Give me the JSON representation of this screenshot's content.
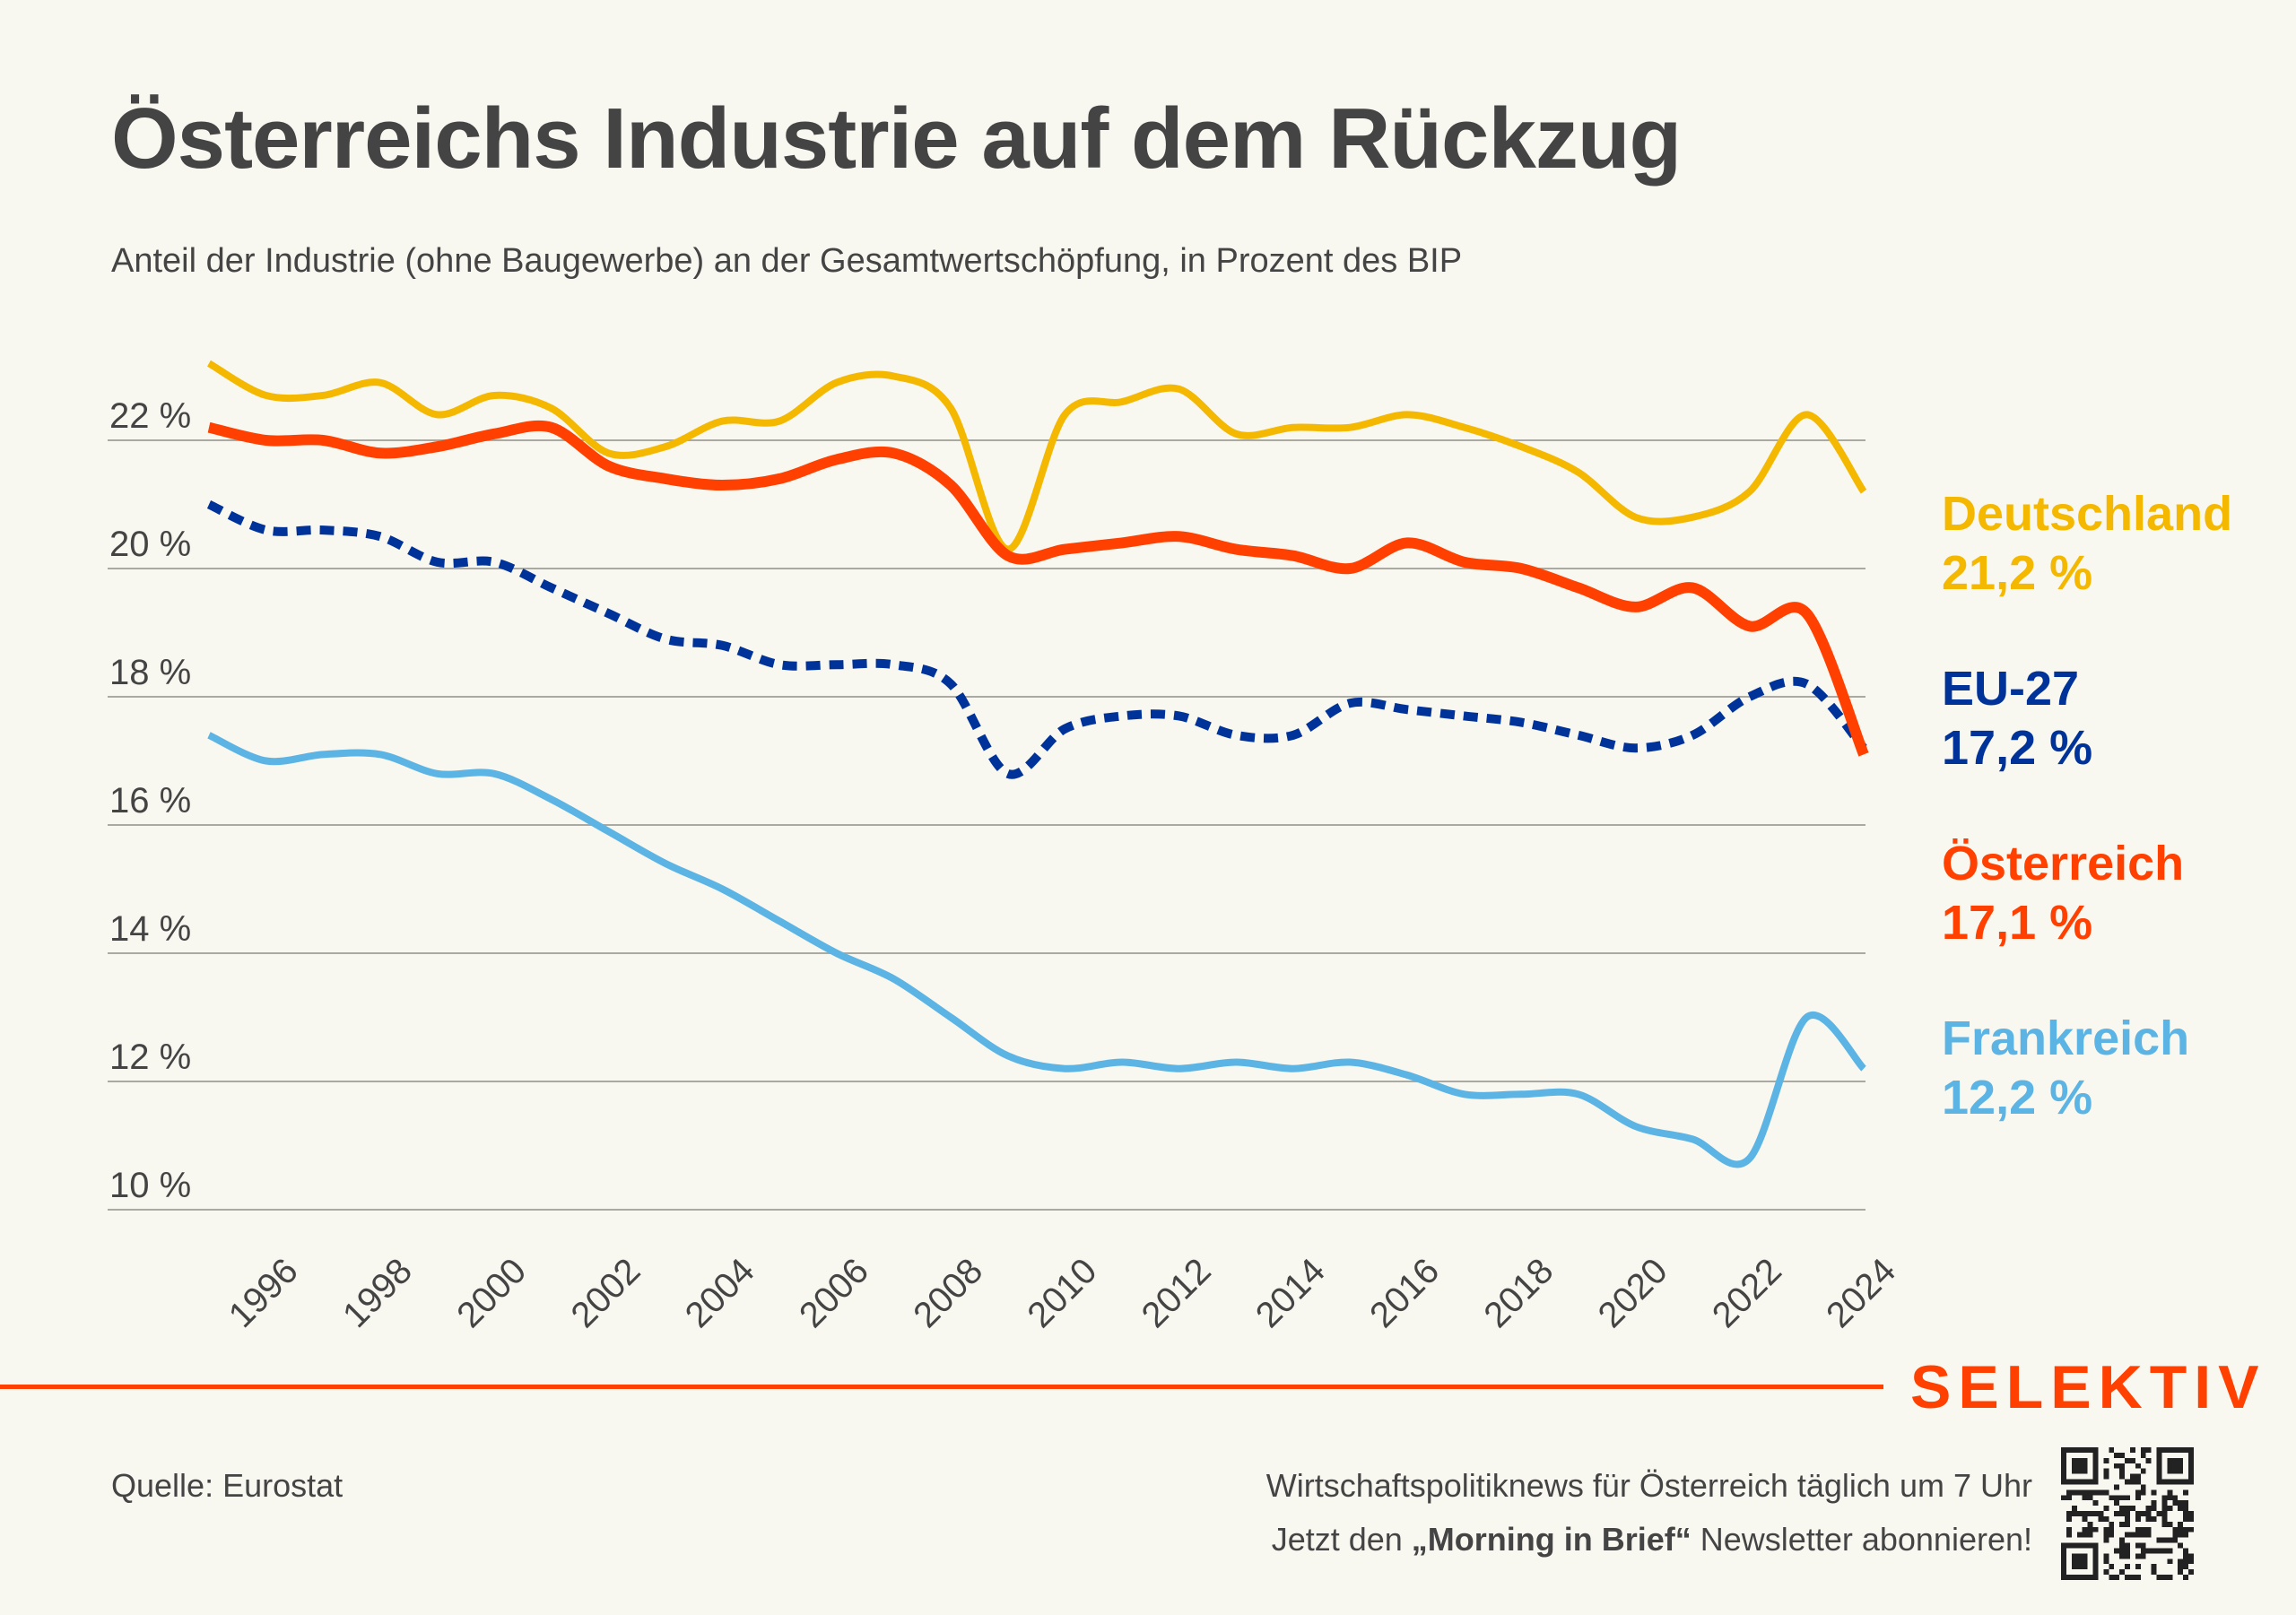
{
  "header": {
    "title": "Österreichs Industrie auf dem Rückzug",
    "subtitle": "Anteil der Industrie (ohne Baugewerbe) an der Gesamtwertschöpfung, in Prozent des BIP"
  },
  "legend": [
    {
      "name": "Deutschland",
      "value": "21,2 %",
      "color": "#f5b800"
    },
    {
      "name": "EU-27",
      "value": "17,2 %",
      "color": "#00339a"
    },
    {
      "name": "Österreich",
      "value": "17,1 %",
      "color": "#ff4000"
    },
    {
      "name": "Frankreich",
      "value": "12,2 %",
      "color": "#5cb4e4"
    }
  ],
  "footer": {
    "source": "Quelle: Eurostat",
    "brand": "SELEKTIV",
    "promo_line1": "Wirtschaftspolitiknews für Österreich täglich um 7 Uhr",
    "promo_line2_pre": "Jetzt den ",
    "promo_line2_bold": "„Morning in Brief“",
    "promo_line2_post": " Newsletter abonnieren!",
    "qr_icon": "qr-code-icon"
  },
  "chart_data": {
    "type": "line",
    "title": "Österreichs Industrie auf dem Rückzug",
    "subtitle": "Anteil der Industrie (ohne Baugewerbe) an der Gesamtwertschöpfung, in Prozent des BIP",
    "xlabel": "",
    "ylabel": "",
    "x": [
      1995,
      1996,
      1997,
      1998,
      1999,
      2000,
      2001,
      2002,
      2003,
      2004,
      2005,
      2006,
      2007,
      2008,
      2009,
      2010,
      2011,
      2012,
      2013,
      2014,
      2015,
      2016,
      2017,
      2018,
      2019,
      2020,
      2021,
      2022,
      2023,
      2024
    ],
    "x_tick_labels": [
      "1996",
      "1998",
      "2000",
      "2002",
      "2004",
      "2006",
      "2008",
      "2010",
      "2012",
      "2014",
      "2016",
      "2018",
      "2020",
      "2022",
      "2024"
    ],
    "y_ticks": [
      10,
      12,
      14,
      16,
      18,
      20,
      22
    ],
    "y_tick_labels": [
      "10 %",
      "12 %",
      "14 %",
      "16 %",
      "18 %",
      "20 %",
      "22 %"
    ],
    "ylim": [
      10,
      23.5
    ],
    "xlim": [
      1995,
      2024
    ],
    "grid": "horizontal",
    "legend_position": "right",
    "series": [
      {
        "name": "Deutschland",
        "color": "#f5b800",
        "style": "solid",
        "values": [
          23.2,
          22.7,
          22.7,
          22.9,
          22.4,
          22.7,
          22.5,
          21.8,
          21.9,
          22.3,
          22.3,
          22.9,
          23.0,
          22.5,
          20.3,
          22.4,
          22.6,
          22.8,
          22.1,
          22.2,
          22.2,
          22.4,
          22.2,
          21.9,
          21.5,
          20.8,
          20.8,
          21.2,
          22.4,
          21.2
        ]
      },
      {
        "name": "Österreich",
        "color": "#ff4000",
        "style": "solid-thick",
        "values": [
          22.2,
          22.0,
          22.0,
          21.8,
          21.9,
          22.1,
          22.2,
          21.6,
          21.4,
          21.3,
          21.4,
          21.7,
          21.8,
          21.3,
          20.2,
          20.3,
          20.4,
          20.5,
          20.3,
          20.2,
          20.0,
          20.4,
          20.1,
          20.0,
          19.7,
          19.4,
          19.7,
          19.1,
          19.3,
          17.1
        ]
      },
      {
        "name": "EU-27",
        "color": "#00339a",
        "style": "dashed",
        "values": [
          21.0,
          20.6,
          20.6,
          20.5,
          20.1,
          20.1,
          19.7,
          19.3,
          18.9,
          18.8,
          18.5,
          18.5,
          18.5,
          18.2,
          16.8,
          17.5,
          17.7,
          17.7,
          17.4,
          17.4,
          17.9,
          17.8,
          17.7,
          17.6,
          17.4,
          17.2,
          17.4,
          18.0,
          18.2,
          17.2
        ]
      },
      {
        "name": "Frankreich",
        "color": "#5cb4e4",
        "style": "solid",
        "values": [
          17.4,
          17.0,
          17.1,
          17.1,
          16.8,
          16.8,
          16.4,
          15.9,
          15.4,
          15.0,
          14.5,
          14.0,
          13.6,
          13.0,
          12.4,
          12.2,
          12.3,
          12.2,
          12.3,
          12.2,
          12.3,
          12.1,
          11.8,
          11.8,
          11.8,
          11.3,
          11.1,
          10.8,
          13.0,
          12.2
        ]
      }
    ]
  }
}
